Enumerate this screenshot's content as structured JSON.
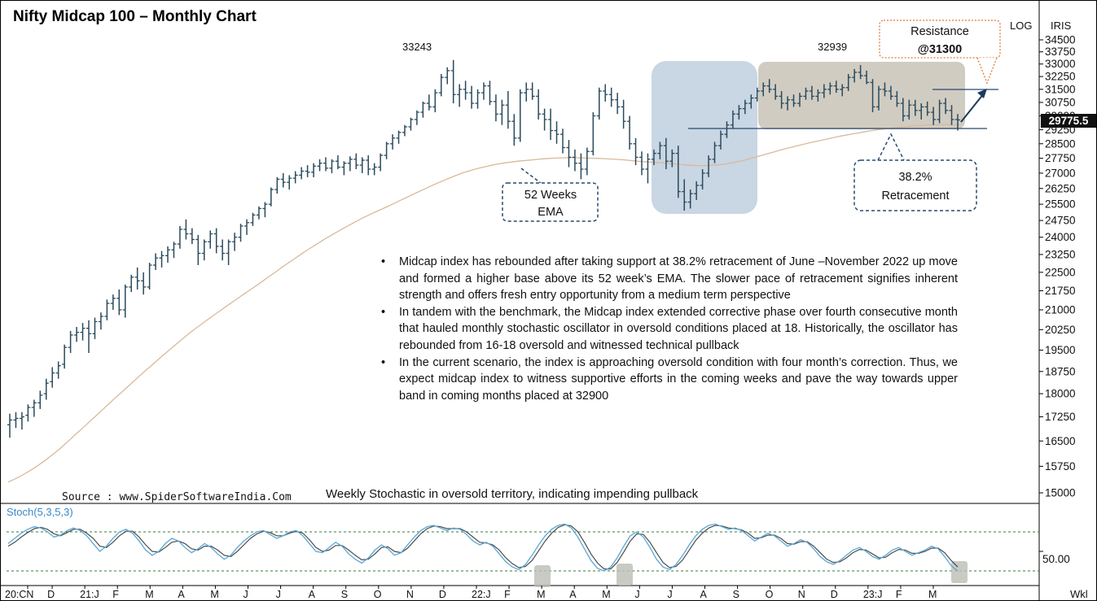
{
  "page": {
    "title": "Nifty Midcap 100 – Monthly  Chart",
    "scale_label": "LOG",
    "brand_label": "IRIS",
    "source": "Source : www.SpiderSoftwareIndia.Com",
    "stoch_caption": "Weekly  Stochastic in oversold territory, indicating impending pullback",
    "stoch_label": "Stoch(5,3,5,3)",
    "period_label": "Wkl",
    "current_price": "29775.5"
  },
  "annotations": {
    "peak_left": "33243",
    "peak_right": "32939",
    "resistance_line1": "Resistance",
    "resistance_line2": "@31300",
    "ema_line1": "52 Weeks",
    "ema_line2": "EMA",
    "retrace_line1": "38.2%",
    "retrace_line2": "Retracement"
  },
  "commentary": [
    "Midcap index has rebounded after taking support at 38.2% retracement of June –November 2022 up move and formed a higher base above its 52 week’s EMA. The slower pace of retracement signifies inherent strength and offers fresh entry opportunity from a medium term perspective",
    "In tandem with the benchmark, the Midcap index extended corrective phase over fourth consecutive month that hauled monthly stochastic oscillator in oversold conditions placed at 18. Historically, the oscillator has rebounded from 16-18 oversold and witnessed technical pullback",
    "In the current scenario, the index is approaching oversold condition with four month’s correction. Thus, we expect midcap index to witness supportive efforts in the coming weeks and pave the way towards upper band in coming months placed at 32900"
  ],
  "colors": {
    "bars": "#2a4a5c",
    "ema": "#d9b99b",
    "blue_zone": "#bfcfde",
    "grey_zone": "#c9c3b7",
    "stoch_k": "#5aa7d6",
    "stoch_d": "#4b4b4b",
    "dashed_box": "#27496d",
    "resistance_box": "#e07b39"
  },
  "chart_data": {
    "type": "ohlc",
    "title": "Nifty Midcap 100 – Monthly  Chart",
    "scale": "log",
    "ylim": [
      14700,
      34800
    ],
    "y_ticks": [
      34500,
      33750,
      33000,
      32250,
      31500,
      30750,
      30000,
      29250,
      28500,
      27750,
      27000,
      26250,
      25500,
      24750,
      24000,
      23250,
      22500,
      21750,
      21000,
      20250,
      19500,
      18750,
      18000,
      17250,
      16500,
      15750,
      15000
    ],
    "x_tick_labels": [
      "20:CN",
      "D",
      "21:J",
      "F",
      "M",
      "A",
      "M",
      "J",
      "J",
      "A",
      "S",
      "O",
      "N",
      "D",
      "22:J",
      "F",
      "M",
      "A",
      "M",
      "J",
      "J",
      "A",
      "S",
      "O",
      "N",
      "D",
      "23:J",
      "F",
      "M"
    ],
    "support_level": 29500,
    "resistance_level": 31300,
    "current_price": 29775.5,
    "ohlc": [
      [
        17000,
        17350,
        16600,
        17150
      ],
      [
        17150,
        17400,
        16900,
        17200
      ],
      [
        17200,
        17400,
        16850,
        17250
      ],
      [
        17300,
        17650,
        17100,
        17550
      ],
      [
        17550,
        17800,
        17250,
        17700
      ],
      [
        17700,
        18100,
        17500,
        17950
      ],
      [
        18000,
        18500,
        17800,
        18350
      ],
      [
        18400,
        18900,
        18200,
        18700
      ],
      [
        18700,
        19100,
        18500,
        18950
      ],
      [
        19000,
        19700,
        18850,
        19600
      ],
      [
        19600,
        20200,
        19400,
        20050
      ],
      [
        20050,
        20350,
        19800,
        20150
      ],
      [
        20150,
        20500,
        19850,
        20300
      ],
      [
        20300,
        20600,
        19400,
        20100
      ],
      [
        20100,
        20700,
        19900,
        20550
      ],
      [
        20550,
        20900,
        20250,
        20750
      ],
      [
        20750,
        21400,
        20600,
        21250
      ],
      [
        21250,
        21600,
        21000,
        21450
      ],
      [
        21450,
        21800,
        20800,
        21000
      ],
      [
        21000,
        22000,
        20700,
        21900
      ],
      [
        21900,
        22400,
        21700,
        22300
      ],
      [
        22300,
        22700,
        21800,
        22150
      ],
      [
        22150,
        22500,
        21600,
        21900
      ],
      [
        21900,
        22900,
        21800,
        22800
      ],
      [
        22800,
        23300,
        22600,
        23100
      ],
      [
        23100,
        23400,
        22700,
        23200
      ],
      [
        23200,
        23600,
        22900,
        23450
      ],
      [
        23450,
        23800,
        23100,
        23700
      ],
      [
        23700,
        24500,
        23500,
        24350
      ],
      [
        24350,
        24800,
        23900,
        24150
      ],
      [
        24150,
        24400,
        23700,
        23900
      ],
      [
        23900,
        24100,
        22800,
        23300
      ],
      [
        23300,
        23900,
        23000,
        23800
      ],
      [
        23800,
        24300,
        23500,
        24150
      ],
      [
        24150,
        24400,
        23300,
        23600
      ],
      [
        23600,
        23900,
        23000,
        23300
      ],
      [
        23300,
        23900,
        22800,
        23800
      ],
      [
        23800,
        24200,
        23400,
        24000
      ],
      [
        24000,
        24600,
        23800,
        24500
      ],
      [
        24500,
        24800,
        24100,
        24650
      ],
      [
        24650,
        25100,
        24500,
        25000
      ],
      [
        25000,
        25400,
        24800,
        25300
      ],
      [
        25300,
        25600,
        24900,
        25500
      ],
      [
        25500,
        26300,
        25400,
        26200
      ],
      [
        26200,
        26800,
        26000,
        26700
      ],
      [
        26700,
        27000,
        26300,
        26550
      ],
      [
        26550,
        26900,
        26200,
        26750
      ],
      [
        26750,
        27100,
        26500,
        26900
      ],
      [
        26900,
        27300,
        26700,
        27100
      ],
      [
        27100,
        27400,
        26800,
        27050
      ],
      [
        27050,
        27500,
        26800,
        27350
      ],
      [
        27350,
        27700,
        27100,
        27500
      ],
      [
        27500,
        27800,
        27100,
        27250
      ],
      [
        27250,
        27700,
        27000,
        27600
      ],
      [
        27600,
        27900,
        27200,
        27300
      ],
      [
        27300,
        27600,
        26900,
        27500
      ],
      [
        27500,
        27850,
        27100,
        27700
      ],
      [
        27700,
        28000,
        27200,
        27400
      ],
      [
        27400,
        27800,
        27000,
        27650
      ],
      [
        27650,
        27900,
        26900,
        27200
      ],
      [
        27200,
        27500,
        26900,
        27300
      ],
      [
        27300,
        28000,
        27100,
        27900
      ],
      [
        27900,
        28600,
        27700,
        28500
      ],
      [
        28500,
        29000,
        28200,
        28800
      ],
      [
        28800,
        29200,
        28500,
        29100
      ],
      [
        29100,
        29500,
        28900,
        29400
      ],
      [
        29400,
        29900,
        29200,
        29800
      ],
      [
        29800,
        30300,
        29500,
        30200
      ],
      [
        30200,
        30800,
        29900,
        30700
      ],
      [
        30700,
        31200,
        30300,
        30500
      ],
      [
        30500,
        31500,
        30200,
        31300
      ],
      [
        31300,
        32400,
        31100,
        32200
      ],
      [
        32200,
        32800,
        31800,
        32600
      ],
      [
        32600,
        33243,
        30700,
        31200
      ],
      [
        31200,
        31800,
        30500,
        31500
      ],
      [
        31500,
        32000,
        30900,
        31300
      ],
      [
        31300,
        31700,
        30400,
        30700
      ],
      [
        30700,
        31500,
        30400,
        31300
      ],
      [
        31300,
        31900,
        30900,
        31700
      ],
      [
        31700,
        32000,
        30600,
        30800
      ],
      [
        30800,
        31200,
        29700,
        30100
      ],
      [
        30100,
        30900,
        29500,
        30600
      ],
      [
        30600,
        31400,
        29300,
        29700
      ],
      [
        29700,
        30100,
        28400,
        28800
      ],
      [
        28800,
        31500,
        28600,
        31300
      ],
      [
        31300,
        31900,
        30800,
        31500
      ],
      [
        31500,
        31900,
        30900,
        31100
      ],
      [
        31100,
        31500,
        29800,
        30100
      ],
      [
        30100,
        30400,
        29200,
        29800
      ],
      [
        29800,
        30400,
        28700,
        29200
      ],
      [
        29200,
        29700,
        28500,
        29000
      ],
      [
        29000,
        29300,
        28000,
        28300
      ],
      [
        28300,
        28700,
        27300,
        27800
      ],
      [
        27800,
        28200,
        27100,
        27500
      ],
      [
        27500,
        28000,
        26700,
        27200
      ],
      [
        27200,
        28300,
        26900,
        28100
      ],
      [
        28100,
        30200,
        27900,
        30000
      ],
      [
        30000,
        31600,
        29800,
        31400
      ],
      [
        31400,
        31800,
        30800,
        31200
      ],
      [
        31200,
        31600,
        30500,
        30900
      ],
      [
        30900,
        31300,
        30100,
        30500
      ],
      [
        30500,
        30900,
        29300,
        29700
      ],
      [
        29700,
        30000,
        28200,
        28500
      ],
      [
        28500,
        28800,
        27400,
        27800
      ],
      [
        27800,
        28100,
        26900,
        27200
      ],
      [
        27200,
        28000,
        26500,
        27700
      ],
      [
        27700,
        28200,
        27400,
        28000
      ],
      [
        28000,
        28600,
        27700,
        28400
      ],
      [
        28400,
        28800,
        27200,
        27600
      ],
      [
        27600,
        28200,
        27300,
        28000
      ],
      [
        28000,
        28400,
        25800,
        26100
      ],
      [
        26100,
        26700,
        25200,
        25600
      ],
      [
        25600,
        26200,
        25300,
        26000
      ],
      [
        26000,
        26600,
        25700,
        26400
      ],
      [
        26400,
        27200,
        26200,
        27000
      ],
      [
        27000,
        27900,
        26800,
        27700
      ],
      [
        27700,
        28600,
        27500,
        28400
      ],
      [
        28400,
        29200,
        28200,
        29000
      ],
      [
        29000,
        29700,
        28800,
        29500
      ],
      [
        29500,
        30300,
        29300,
        30100
      ],
      [
        30100,
        30600,
        29800,
        30400
      ],
      [
        30400,
        30900,
        30100,
        30700
      ],
      [
        30700,
        31200,
        30400,
        31000
      ],
      [
        31000,
        31600,
        30800,
        31400
      ],
      [
        31400,
        31900,
        31100,
        31700
      ],
      [
        31700,
        32100,
        31300,
        31500
      ],
      [
        31500,
        31800,
        30900,
        31100
      ],
      [
        31100,
        31400,
        30400,
        30700
      ],
      [
        30700,
        31100,
        30300,
        30900
      ],
      [
        30900,
        31200,
        30500,
        30700
      ],
      [
        30700,
        31300,
        30500,
        31100
      ],
      [
        31100,
        31600,
        30900,
        31400
      ],
      [
        31400,
        31700,
        30900,
        31100
      ],
      [
        31100,
        31500,
        30800,
        31300
      ],
      [
        31300,
        31800,
        31000,
        31500
      ],
      [
        31500,
        31900,
        31200,
        31700
      ],
      [
        31700,
        32000,
        31300,
        31500
      ],
      [
        31500,
        31800,
        31100,
        31600
      ],
      [
        31600,
        32400,
        31400,
        32200
      ],
      [
        32200,
        32700,
        31900,
        32500
      ],
      [
        32500,
        32939,
        32100,
        32300
      ],
      [
        32300,
        32600,
        31800,
        31900
      ],
      [
        31900,
        32100,
        30200,
        30500
      ],
      [
        30500,
        31700,
        30300,
        31500
      ],
      [
        31500,
        31900,
        31100,
        31400
      ],
      [
        31400,
        31700,
        30900,
        31100
      ],
      [
        31100,
        31400,
        30500,
        30700
      ],
      [
        30700,
        31000,
        29700,
        30000
      ],
      [
        30000,
        30900,
        29800,
        30600
      ],
      [
        30600,
        30900,
        30000,
        30300
      ],
      [
        30300,
        30700,
        29800,
        30500
      ],
      [
        30500,
        30800,
        30000,
        30200
      ],
      [
        30200,
        30500,
        29500,
        29800
      ],
      [
        29800,
        30900,
        29600,
        30700
      ],
      [
        30700,
        31000,
        30100,
        30300
      ],
      [
        30300,
        30600,
        29500,
        29800
      ],
      [
        29800,
        30100,
        29200,
        29775.5
      ]
    ],
    "ema_52": [
      15300,
      15380,
      15470,
      15570,
      15680,
      15800,
      15930,
      16070,
      16220,
      16380,
      16550,
      16730,
      16900,
      17080,
      17260,
      17440,
      17630,
      17820,
      18000,
      18190,
      18380,
      18570,
      18760,
      18950,
      19140,
      19330,
      19520,
      19710,
      19900,
      20090,
      20270,
      20440,
      20610,
      20780,
      20950,
      21120,
      21290,
      21460,
      21630,
      21800,
      21970,
      22150,
      22330,
      22510,
      22700,
      22880,
      23060,
      23240,
      23420,
      23590,
      23760,
      23930,
      24090,
      24250,
      24410,
      24560,
      24710,
      24860,
      25000,
      25130,
      25260,
      25390,
      25530,
      25670,
      25810,
      25950,
      26090,
      26230,
      26370,
      26500,
      26630,
      26760,
      26880,
      27000,
      27100,
      27190,
      27270,
      27340,
      27410,
      27470,
      27520,
      27560,
      27600,
      27630,
      27660,
      27690,
      27720,
      27740,
      27760,
      27770,
      27780,
      27780,
      27770,
      27760,
      27750,
      27740,
      27730,
      27710,
      27690,
      27670,
      27640,
      27610,
      27580,
      27560,
      27540,
      27520,
      27500,
      27470,
      27440,
      27410,
      27390,
      27380,
      27380,
      27390,
      27410,
      27440,
      27490,
      27550,
      27620,
      27700,
      27790,
      27880,
      27970,
      28060,
      28150,
      28240,
      28320,
      28400,
      28480,
      28560,
      28630,
      28700,
      28770,
      28840,
      28910,
      28970,
      29030,
      29090,
      29150,
      29200,
      29250,
      29290,
      29330,
      29370,
      29400,
      29430,
      29460,
      29480,
      29500,
      29510,
      29520,
      29520,
      29510,
      29500
    ]
  },
  "stoch_data": {
    "label": "Stoch(5,3,5,3)",
    "ylim": [
      0,
      100
    ],
    "y_ticks": [
      50
    ],
    "overbought": 80,
    "oversold": 20,
    "k": [
      62,
      70,
      78,
      84,
      88,
      86,
      80,
      72,
      75,
      82,
      86,
      82,
      74,
      62,
      50,
      58,
      70,
      80,
      84,
      78,
      66,
      52,
      44,
      50,
      62,
      70,
      66,
      56,
      48,
      54,
      62,
      56,
      46,
      38,
      44,
      56,
      66,
      74,
      80,
      82,
      76,
      70,
      74,
      80,
      82,
      74,
      62,
      50,
      48,
      56,
      64,
      58,
      46,
      38,
      32,
      40,
      52,
      60,
      54,
      44,
      48,
      60,
      72,
      82,
      88,
      90,
      86,
      82,
      86,
      84,
      76,
      66,
      60,
      64,
      58,
      46,
      34,
      26,
      22,
      30,
      44,
      60,
      74,
      84,
      90,
      92,
      86,
      72,
      54,
      36,
      24,
      20,
      26,
      40,
      58,
      74,
      80,
      72,
      56,
      38,
      26,
      22,
      30,
      44,
      60,
      74,
      84,
      90,
      92,
      88,
      84,
      86,
      82,
      74,
      66,
      72,
      78,
      74,
      66,
      58,
      62,
      68,
      64,
      54,
      42,
      34,
      30,
      36,
      44,
      52,
      56,
      50,
      42,
      38,
      44,
      52,
      56,
      50,
      44,
      48,
      52,
      58,
      54,
      42,
      28,
      20
    ],
    "d": [
      58,
      64,
      72,
      79,
      85,
      87,
      84,
      77,
      74,
      79,
      84,
      84,
      78,
      70,
      58,
      56,
      64,
      74,
      81,
      81,
      72,
      60,
      50,
      49,
      56,
      64,
      66,
      62,
      54,
      52,
      58,
      58,
      52,
      44,
      42,
      50,
      60,
      70,
      77,
      81,
      79,
      74,
      74,
      78,
      81,
      78,
      68,
      56,
      50,
      52,
      59,
      59,
      52,
      44,
      37,
      38,
      46,
      56,
      57,
      50,
      48,
      55,
      66,
      77,
      85,
      89,
      88,
      85,
      85,
      85,
      80,
      72,
      64,
      63,
      60,
      52,
      40,
      31,
      25,
      27,
      36,
      51,
      66,
      78,
      87,
      91,
      89,
      80,
      64,
      46,
      32,
      23,
      23,
      33,
      49,
      66,
      77,
      76,
      64,
      48,
      33,
      25,
      27,
      37,
      52,
      67,
      78,
      86,
      90,
      89,
      86,
      85,
      83,
      78,
      70,
      71,
      75,
      75,
      70,
      62,
      61,
      65,
      65,
      58,
      48,
      38,
      33,
      34,
      40,
      48,
      53,
      52,
      46,
      40,
      41,
      48,
      53,
      52,
      47,
      47,
      50,
      55,
      55,
      48,
      36,
      26
    ]
  }
}
